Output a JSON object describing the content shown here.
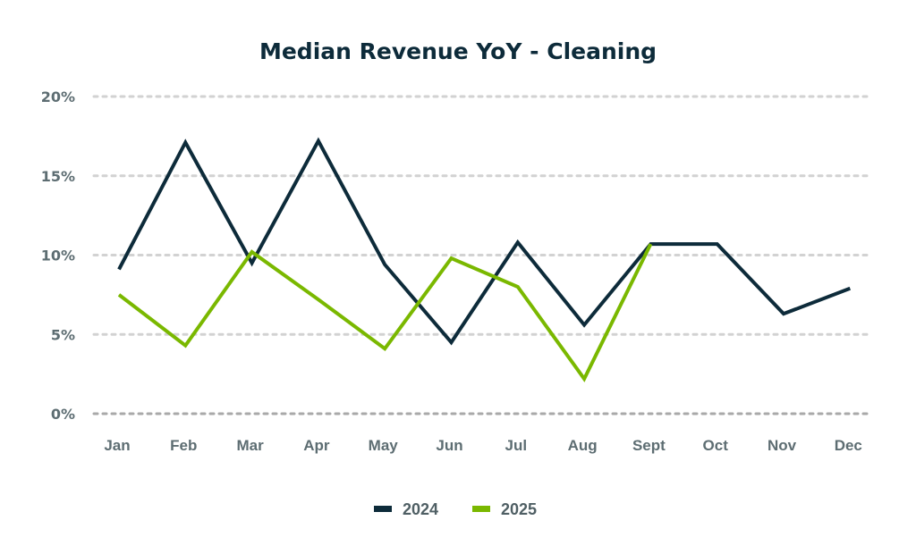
{
  "chart_data": {
    "type": "line",
    "title": "Median Revenue YoY - Cleaning",
    "xlabel": "",
    "ylabel": "",
    "categories": [
      "Jan",
      "Feb",
      "Mar",
      "Apr",
      "May",
      "Jun",
      "Jul",
      "Aug",
      "Sept",
      "Oct",
      "Nov",
      "Dec"
    ],
    "ylim": [
      0,
      20
    ],
    "yticks": [
      0,
      5,
      10,
      15,
      20
    ],
    "ytick_labels": [
      "0%",
      "5%",
      "10%",
      "15%",
      "20%"
    ],
    "grid": true,
    "legend_position": "bottom-center",
    "series": [
      {
        "name": "2024",
        "color": "#0d2b3a",
        "values": [
          9.1,
          17.1,
          9.5,
          17.2,
          9.4,
          4.5,
          10.8,
          5.6,
          10.7,
          10.7,
          6.3,
          7.9
        ]
      },
      {
        "name": "2025",
        "color": "#7ab800",
        "values": [
          7.5,
          4.3,
          10.2,
          7.2,
          4.1,
          9.8,
          8.0,
          2.2,
          10.7,
          null,
          null,
          null
        ]
      }
    ]
  }
}
